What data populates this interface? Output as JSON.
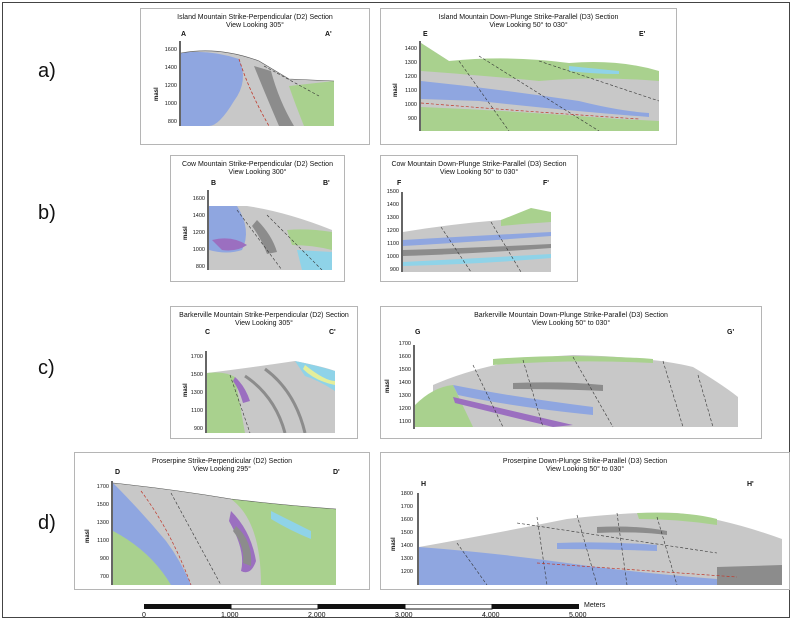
{
  "rows": [
    {
      "label": "a)",
      "left": {
        "title1": "Island Mountain Strike-Perpendicular (D2) Section",
        "title2": "View Looking 305°",
        "ep1": "A",
        "ep2": "A'",
        "ticks": [
          "1600",
          "1400",
          "1200",
          "1000",
          "800"
        ]
      },
      "right": {
        "title1": "Island Mountain Down-Plunge Strike-Parallel (D3) Section",
        "title2": "View Looking 50° to 030°",
        "ep1": "E",
        "ep2": "E'",
        "ticks": [
          "1400",
          "1300",
          "1200",
          "1100",
          "1000",
          "900"
        ]
      }
    },
    {
      "label": "b)",
      "left": {
        "title1": "Cow Mountain Strike-Perpendicular (D2) Section",
        "title2": "View Looking 300°",
        "ep1": "B",
        "ep2": "B'",
        "ticks": [
          "1600",
          "1400",
          "1200",
          "1000",
          "800"
        ]
      },
      "right": {
        "title1": "Cow Mountain Down-Plunge Strike-Parallel (D3) Section",
        "title2": "View Looking 50° to 030°",
        "ep1": "F",
        "ep2": "F'",
        "ticks": [
          "1500",
          "1400",
          "1300",
          "1200",
          "1100",
          "1000",
          "900"
        ]
      }
    },
    {
      "label": "c)",
      "left": {
        "title1": "Barkerville Mountain Strike-Perpendicular (D2) Section",
        "title2": "View Looking 305°",
        "ep1": "C",
        "ep2": "C'",
        "ticks": [
          "1700",
          "1500",
          "1300",
          "1100",
          "900"
        ]
      },
      "right": {
        "title1": "Barkerville Mountain Down-Plunge Strike-Parallel (D3) Section",
        "title2": "View Looking 50° to 030°",
        "ep1": "G",
        "ep2": "G'",
        "ticks": [
          "1700",
          "1600",
          "1500",
          "1400",
          "1300",
          "1200",
          "1100"
        ]
      }
    },
    {
      "label": "d)",
      "left": {
        "title1": "Proserpine Strike-Perpendicular (D2) Section",
        "title2": "View Looking 295°",
        "ep1": "D",
        "ep2": "D'",
        "ticks": [
          "1700",
          "1500",
          "1300",
          "1100",
          "900",
          "700"
        ]
      },
      "right": {
        "title1": "Proserpine Down-Plunge Strike-Parallel (D3) Section",
        "title2": "View Looking 50° to 030°",
        "ep1": "H",
        "ep2": "H'",
        "ticks": [
          "1800",
          "1700",
          "1600",
          "1500",
          "1400",
          "1300",
          "1200"
        ]
      }
    }
  ],
  "axis_label": "masl",
  "scale_bar": {
    "labels": [
      "0",
      "1,000",
      "2,000",
      "3,000",
      "4,000",
      "5,000"
    ],
    "unit": "Meters"
  },
  "colors": {
    "grey": "#c8c8c8",
    "dark_grey": "#8c8c8c",
    "blue": "#8fa6e0",
    "green": "#a9d18e",
    "purple": "#9b6fc0",
    "cyan": "#8fd3e8",
    "yellow": "#e4ee9a"
  }
}
